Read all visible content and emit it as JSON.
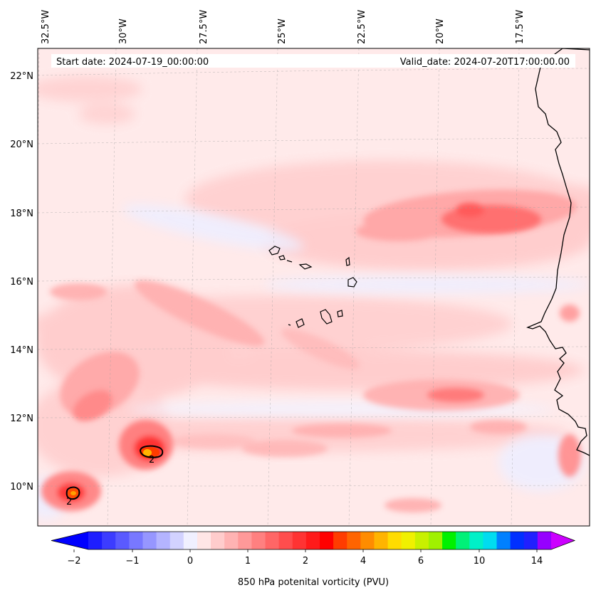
{
  "header": {
    "start_date": "Start date: 2024-07-19_00:00:00",
    "valid_date": "Valid_date: 2024-07-20T17:00:00.00"
  },
  "lon_labels": [
    "32.5°W",
    "30°W",
    "27.5°W",
    "25°W",
    "22.5°W",
    "20°W",
    "17.5°W"
  ],
  "lat_labels": [
    "22°N",
    "20°N",
    "18°N",
    "16°N",
    "14°N",
    "12°N",
    "10°N"
  ],
  "colorbar": {
    "label": "850 hPa potenital vorticity (PVU)",
    "tick_labels": [
      "−2",
      "−1",
      "0",
      "1",
      "2",
      "4",
      "6",
      "10",
      "14"
    ],
    "colors": [
      "#1e1eff",
      "#3c3cff",
      "#5a5aff",
      "#7878ff",
      "#9696ff",
      "#b4b4ff",
      "#d2d2ff",
      "#f0f0ff",
      "#ffe6e6",
      "#ffcccc",
      "#ffb3b3",
      "#ff9999",
      "#ff8080",
      "#ff6666",
      "#ff4d4d",
      "#ff3333",
      "#ff1a1a",
      "#ff0000",
      "#ff3c00",
      "#ff6400",
      "#ff8c00",
      "#ffb400",
      "#ffdc00",
      "#f0f000",
      "#c8f000",
      "#a0f000",
      "#00f000",
      "#00f078",
      "#00f0c8",
      "#00dcf0",
      "#0080ff",
      "#0030ff",
      "#2020ff",
      "#9600ff"
    ]
  },
  "contour_labels": [
    "2",
    "2"
  ],
  "colors": {
    "background": "#ffe9e9",
    "field_low": "#ffd6d6",
    "field_mid": "#ffb0b0",
    "field_high": "#ff6a6a",
    "negative": "#eeeeff",
    "coast": "#000000"
  }
}
